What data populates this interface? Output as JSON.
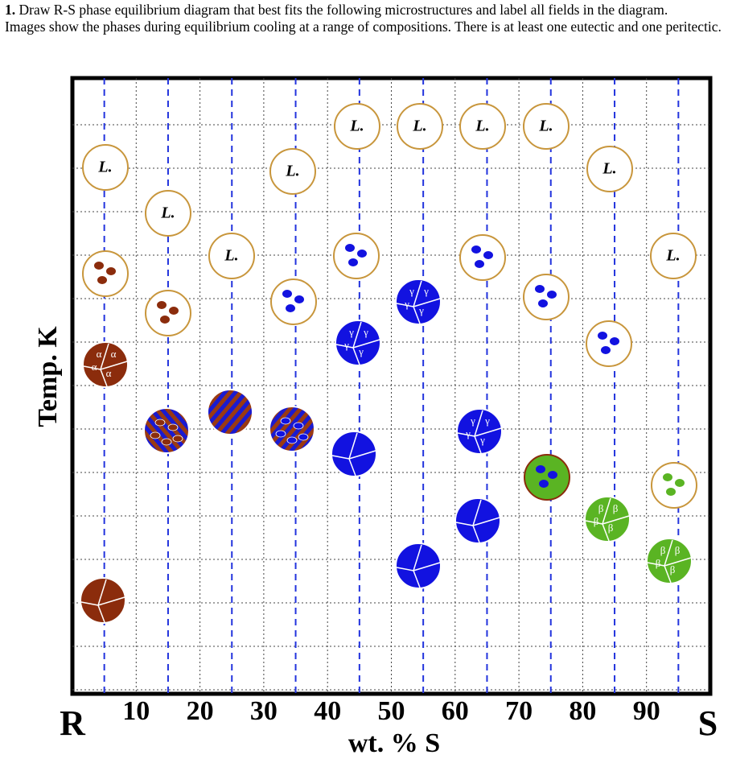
{
  "header": {
    "number": "1.",
    "question": "Draw R-S phase equilibrium diagram that best fits the following microstructures and label all fields in the diagram.",
    "instructions": "Images show the phases during equilibrium cooling at a range of compositions. There is at least one eutectic and one peritectic."
  },
  "axes": {
    "y_label": "Temp. K",
    "x_label": "wt. % S",
    "left_end": "R",
    "right_end": "S",
    "x_ticks": [
      "10",
      "20",
      "30",
      "40",
      "50",
      "60",
      "70",
      "80",
      "90"
    ]
  },
  "microstructures": [
    [
      "L."
    ],
    [
      "L."
    ],
    [
      "L."
    ],
    [
      "L."
    ],
    [
      "L."
    ],
    [
      "L."
    ],
    [
      "L."
    ],
    [
      "L."
    ],
    [
      "L."
    ],
    [
      "L."
    ],
    [
      "α",
      "α",
      "α",
      "α"
    ],
    [
      "γ",
      "γ",
      "γ",
      "γ"
    ],
    [
      "γ",
      "γ",
      "γ",
      "γ"
    ],
    [
      "γ",
      "γ",
      "γ",
      "γ"
    ],
    [
      "β",
      "β",
      "β",
      "β"
    ],
    [
      "β",
      "β",
      "β",
      "β"
    ]
  ]
}
